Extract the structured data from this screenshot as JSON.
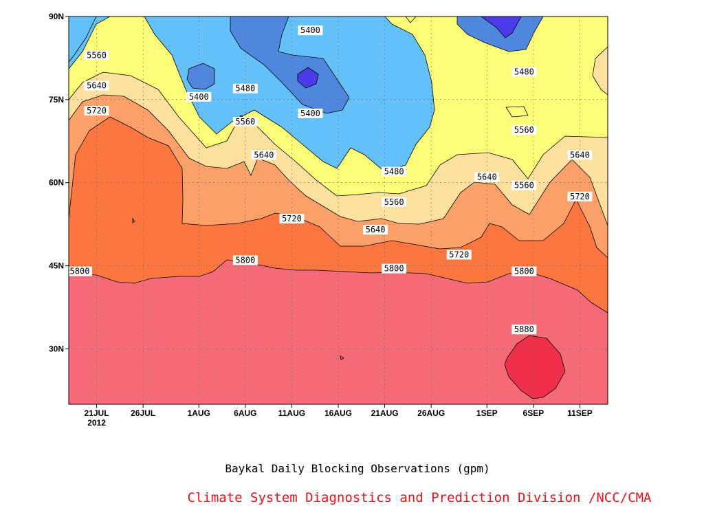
{
  "chart_data": {
    "type": "contour",
    "title": "Baykal Daily Blocking Observations (gpm)",
    "credit": "Climate System Diagnostics and Prediction Division /NCC/CMA",
    "x_tick_labels": [
      "21JUL",
      "26JUL",
      "1AUG",
      "6AUG",
      "11AUG",
      "16AUG",
      "21AUG",
      "26AUG",
      "1SEP",
      "6SEP",
      "11SEP"
    ],
    "x_tick_year": "2012",
    "x_range": [
      "18JUL2012",
      "14SEP2012"
    ],
    "y_tick_labels": [
      "30N",
      "45N",
      "60N",
      "75N",
      "90N"
    ],
    "y_range": [
      20,
      90
    ],
    "contour_levels": [
      5400,
      5480,
      5560,
      5640,
      5720,
      5800,
      5880
    ],
    "fill_colors": {
      "below_5320": "#4b3ae8",
      "5320_5400": "#4f87de",
      "5400_5480": "#63c0f8",
      "5480_5560": "#fbfc78",
      "5560_5640": "#fde09e",
      "5640_5720": "#fca06a",
      "5720_5800": "#fb773f",
      "5800_5880": "#f56a78",
      "above_5880": "#f0304a"
    },
    "contour_labels": [
      {
        "text": "5560",
        "date": "21JUL",
        "lat": 83
      },
      {
        "text": "5640",
        "date": "21JUL",
        "lat": 77.5
      },
      {
        "text": "5720",
        "date": "21JUL",
        "lat": 73
      },
      {
        "text": "5400",
        "date": "1AUG",
        "lat": 75.5
      },
      {
        "text": "5480",
        "date": "6AUG",
        "lat": 77
      },
      {
        "text": "5560",
        "date": "6AUG",
        "lat": 71
      },
      {
        "text": "5400",
        "date": "13AUG",
        "lat": 87.5
      },
      {
        "text": "5400",
        "date": "13AUG",
        "lat": 72.5
      },
      {
        "text": "5640",
        "date": "8AUG",
        "lat": 65
      },
      {
        "text": "5720",
        "date": "11AUG",
        "lat": 53.5
      },
      {
        "text": "5800",
        "date": "6AUG",
        "lat": 46
      },
      {
        "text": "5800",
        "date": "18JUL",
        "lat": 44
      },
      {
        "text": "5480",
        "date": "22AUG",
        "lat": 62
      },
      {
        "text": "5560",
        "date": "22AUG",
        "lat": 56.5
      },
      {
        "text": "5640",
        "date": "20AUG",
        "lat": 51.5
      },
      {
        "text": "5800",
        "date": "22AUG",
        "lat": 44.5
      },
      {
        "text": "5720",
        "date": "29AUG",
        "lat": 47
      },
      {
        "text": "5640",
        "date": "1SEP",
        "lat": 61
      },
      {
        "text": "5480",
        "date": "5SEP",
        "lat": 80
      },
      {
        "text": "5560",
        "date": "5SEP",
        "lat": 69.5
      },
      {
        "text": "5560",
        "date": "5SEP",
        "lat": 59.5
      },
      {
        "text": "5800",
        "date": "5SEP",
        "lat": 44
      },
      {
        "text": "5880",
        "date": "5SEP",
        "lat": 33.5
      },
      {
        "text": "5640",
        "date": "11SEP",
        "lat": 65
      },
      {
        "text": "5720",
        "date": "11SEP",
        "lat": 57.5
      }
    ]
  }
}
